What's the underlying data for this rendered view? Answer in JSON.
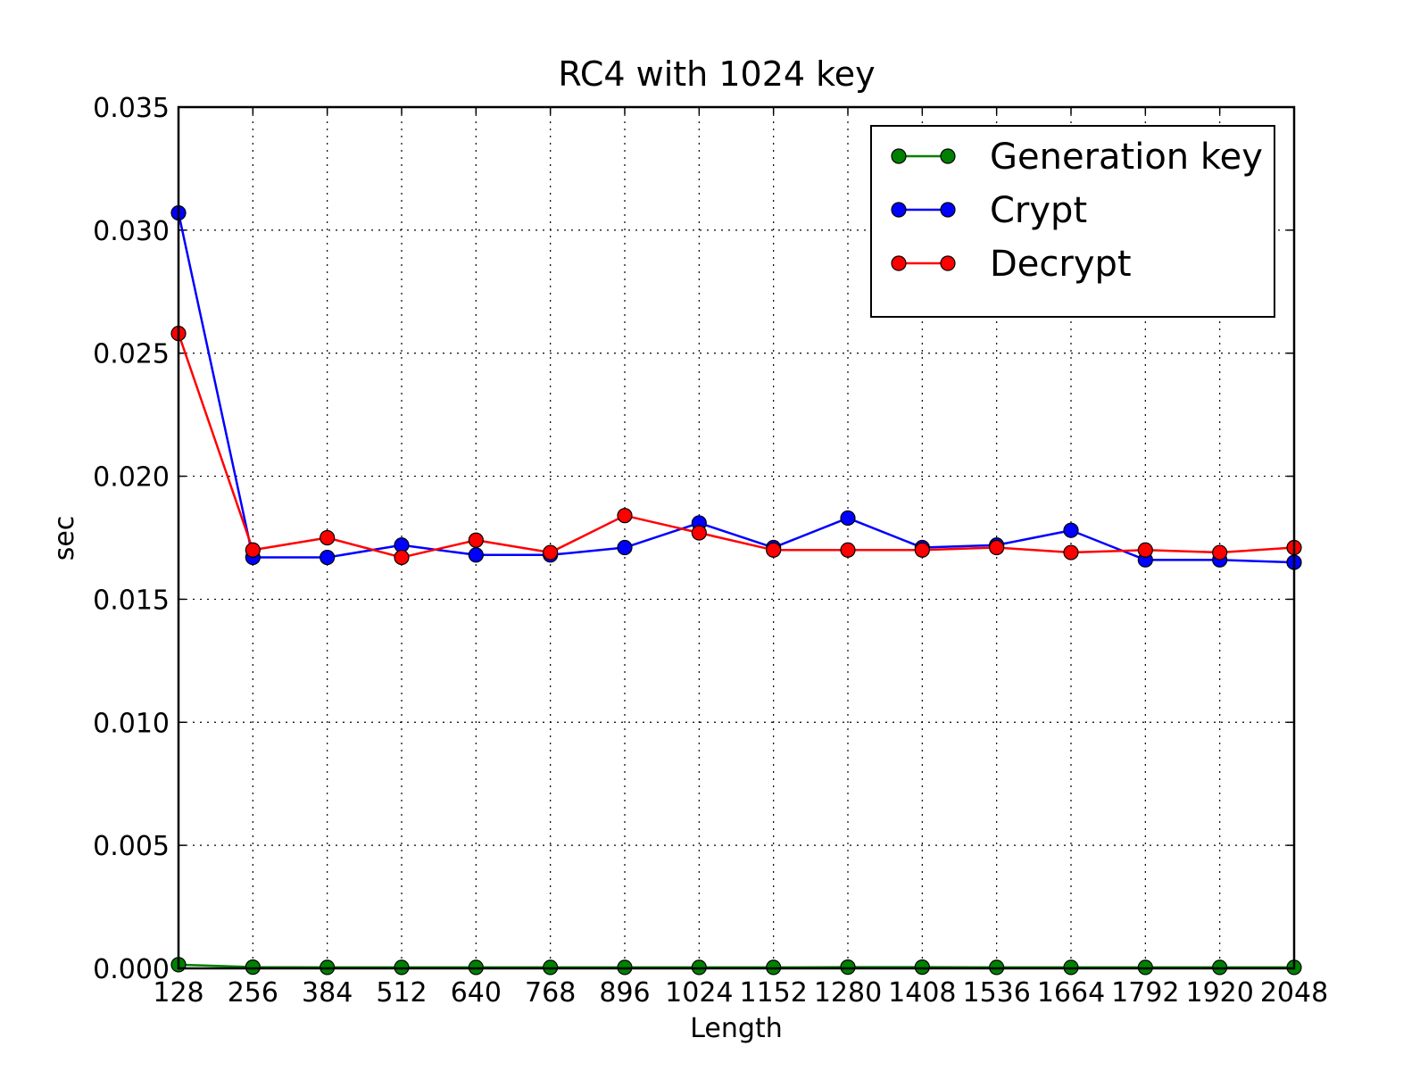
{
  "chart_data": {
    "type": "line",
    "title": "RC4 with 1024 key",
    "xlabel": "Length",
    "ylabel": "sec",
    "categories": [
      "128",
      "256",
      "384",
      "512",
      "640",
      "768",
      "896",
      "1024",
      "1152",
      "1280",
      "1408",
      "1536",
      "1664",
      "1792",
      "1920",
      "2048"
    ],
    "x": [
      128,
      256,
      384,
      512,
      640,
      768,
      896,
      1024,
      1152,
      1280,
      1408,
      1536,
      1664,
      1792,
      1920,
      2048
    ],
    "xlim": [
      128,
      2048
    ],
    "ylim": [
      0.0,
      0.035
    ],
    "yticks": [
      "0.000",
      "0.005",
      "0.010",
      "0.015",
      "0.020",
      "0.025",
      "0.030",
      "0.035"
    ],
    "ytick_values": [
      0.0,
      0.005,
      0.01,
      0.015,
      0.02,
      0.025,
      0.03,
      0.035
    ],
    "grid": true,
    "legend_position": "top-right",
    "series": [
      {
        "name": "Generation key",
        "color": "#008000",
        "values": [
          0.00015,
          5e-05,
          4e-05,
          4e-05,
          4e-05,
          4e-05,
          4e-05,
          4e-05,
          4e-05,
          5e-05,
          5e-05,
          4e-05,
          4e-05,
          4e-05,
          4e-05,
          4e-05
        ]
      },
      {
        "name": "Crypt",
        "color": "#0000ff",
        "values": [
          0.0307,
          0.0167,
          0.0167,
          0.0172,
          0.0168,
          0.0168,
          0.0171,
          0.0181,
          0.0171,
          0.0183,
          0.0171,
          0.0172,
          0.0178,
          0.0166,
          0.0166,
          0.0165
        ]
      },
      {
        "name": "Decrypt",
        "color": "#ff0000",
        "values": [
          0.0258,
          0.017,
          0.0175,
          0.0167,
          0.0174,
          0.0169,
          0.0184,
          0.0177,
          0.017,
          0.017,
          0.017,
          0.0171,
          0.0169,
          0.017,
          0.0169,
          0.0171
        ]
      }
    ]
  }
}
